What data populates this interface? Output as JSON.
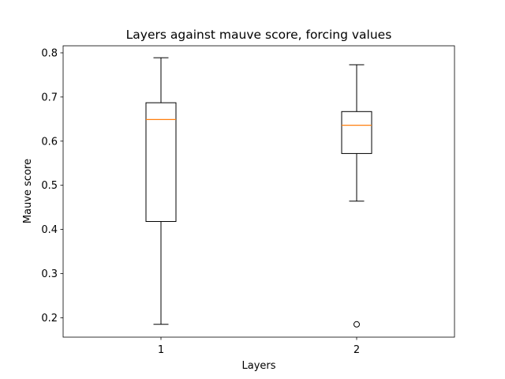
{
  "chart_data": {
    "type": "box",
    "title": "Layers against mauve score, forcing values",
    "xlabel": "Layers",
    "ylabel": "Mauve score",
    "categories": [
      "1",
      "2"
    ],
    "ylim": [
      0.156,
      0.816
    ],
    "yticks": [
      "0.2",
      "0.3",
      "0.4",
      "0.5",
      "0.6",
      "0.7",
      "0.8"
    ],
    "grid": false,
    "colors": {
      "box": "#000000",
      "median": "#ff7f0e",
      "outlier": "#000000"
    },
    "series": [
      {
        "whisker_low": 0.185,
        "q1": 0.418,
        "median": 0.649,
        "q3": 0.687,
        "whisker_high": 0.789,
        "outliers": []
      },
      {
        "whisker_low": 0.464,
        "q1": 0.572,
        "median": 0.636,
        "q3": 0.667,
        "whisker_high": 0.773,
        "outliers": [
          0.185
        ]
      }
    ]
  }
}
